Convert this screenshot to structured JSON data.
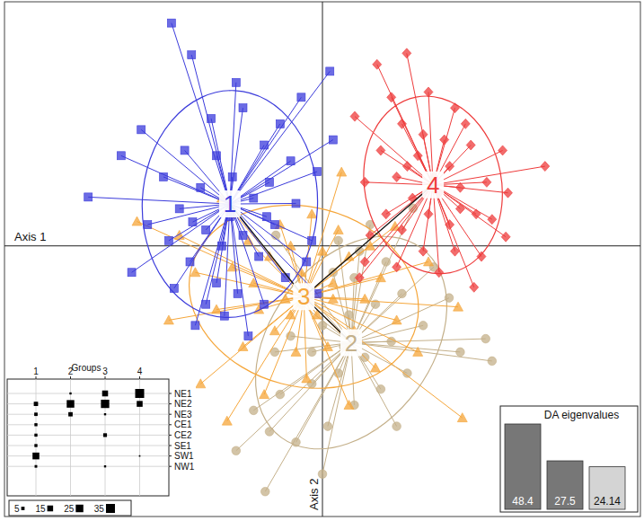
{
  "chart_data": {
    "type": "scatter",
    "x_label": "Axis 1",
    "y_label": "Axis 2",
    "xlim": [
      -6,
      6
    ],
    "ylim": [
      -5.1,
      4.6
    ],
    "xticks": [
      0
    ],
    "yticks": [
      0
    ],
    "tick_labels": false,
    "grid": false,
    "series": [
      {
        "name": "1",
        "color": "#3b3bdb",
        "marker": "square",
        "x": [
          -2.85,
          -2.47,
          -1.63,
          0.14,
          -4.42,
          -3.42,
          -1.85,
          -2.1,
          -1.5,
          -0.8,
          -0.4,
          0.2,
          -0.1,
          -0.6,
          -1.1,
          -2.6,
          -3.0,
          -3.3,
          -2.9,
          -2.5,
          -2.2,
          -1.9,
          -1.5,
          -1.2,
          -0.9,
          -0.5,
          -0.2,
          -1.3,
          -1.7,
          -2.3,
          -2.7,
          -3.6,
          -2.8,
          -2.0,
          -1.6,
          -1.1,
          -0.7,
          -0.3,
          -2.4,
          -1.4,
          -2.0,
          -1.0,
          -3.8,
          -0.1,
          -2.2,
          -1.75,
          -2.45,
          -1.05
        ],
        "values": [
          4.2,
          3.6,
          3.08,
          3.29,
          0.92,
          2.19,
          -1.32,
          2.4,
          2.6,
          2.3,
          2.8,
          2.0,
          1.4,
          1.6,
          1.9,
          1.8,
          1.3,
          0.4,
          0.1,
          -0.3,
          0.3,
          0.0,
          0.2,
          -0.2,
          0.4,
          0.8,
          0.1,
          0.9,
          1.3,
          1.1,
          0.7,
          -0.5,
          -0.8,
          -0.7,
          -0.9,
          -1.1,
          -0.6,
          -0.3,
          -1.5,
          -1.7,
          1.7,
          1.2,
          1.7,
          -0.9,
          -1.1,
          0.55,
          0.45,
          0.55
        ]
      },
      {
        "name": "2",
        "color": "#c4b08a",
        "marker": "circle",
        "x": [
          3.2,
          3.08,
          1.71,
          -1.08,
          -1.63,
          -0.88,
          2.39,
          1.2,
          0.7,
          0.2,
          -0.3,
          1.5,
          1.0,
          0.5,
          0.0,
          -0.6,
          1.9,
          1.3,
          0.8,
          0.3,
          -0.2,
          -0.8,
          -1.3,
          0.6,
          0.1,
          -0.5,
          1.1,
          1.6,
          -0.9,
          -0.4,
          2.1,
          0.9,
          0.4,
          -1.0,
          0.0,
          1.4,
          0.3,
          -0.2,
          2.6,
          0.6
        ],
        "values": [
          -2.17,
          -1.75,
          0.71,
          -4.63,
          -3.86,
          0.2,
          -0.98,
          -0.3,
          -0.1,
          -0.5,
          -0.9,
          -0.9,
          -1.1,
          -1.3,
          -1.5,
          -1.7,
          -1.5,
          -1.8,
          -2.1,
          -2.4,
          -2.6,
          -2.8,
          -3.1,
          -3.0,
          -3.4,
          -3.7,
          -2.7,
          -2.4,
          -2.0,
          -1.1,
          -0.4,
          0.4,
          -1.9,
          -3.5,
          -4.3,
          -3.4,
          0.1,
          -2.0,
          -2.0,
          -0.6
        ]
      },
      {
        "name": "3",
        "color": "#f5a63a",
        "marker": "triangle",
        "x": [
          -3.5,
          2.64,
          2.56,
          1.37,
          0.36,
          -2.4,
          -2.0,
          -1.7,
          -1.3,
          -1.0,
          -0.7,
          -0.4,
          -0.1,
          0.2,
          0.5,
          0.8,
          1.1,
          1.4,
          -0.9,
          -0.5,
          0.1,
          0.6,
          -1.5,
          -2.3,
          -1.1,
          0.3,
          -0.2,
          -0.8,
          -1.9,
          -2.7,
          0.9,
          1.8,
          -0.3,
          -1.8,
          0.0,
          -0.6,
          1.0,
          -1.4,
          2.0,
          -2.9,
          0.5,
          -1.2,
          0.2,
          -0.6
        ],
        "values": [
          0.46,
          -3.24,
          -1.15,
          0.37,
          1.39,
          -0.5,
          -1.2,
          -0.4,
          -0.7,
          -0.2,
          -1.0,
          -0.5,
          -1.3,
          -0.7,
          -0.2,
          -1.0,
          -0.6,
          -1.4,
          -1.6,
          -2.0,
          -1.9,
          -1.6,
          -1.9,
          -2.6,
          -2.8,
          0.3,
          0.6,
          0.4,
          0.9,
          0.2,
          0.0,
          -2.0,
          -2.5,
          -3.3,
          -0.1,
          -1.3,
          -2.3,
          0.1,
          -0.3,
          -1.4,
          -3.0,
          -1.2,
          -1.0,
          0.0
        ]
      },
      {
        "name": "4",
        "color": "#ee3b3b",
        "marker": "diamond",
        "x": [
          4.2,
          3.46,
          2.86,
          0.61,
          1.03,
          1.59,
          3.4,
          2.0,
          2.5,
          1.5,
          1.1,
          1.4,
          1.8,
          2.3,
          2.8,
          3.1,
          2.6,
          2.1,
          1.7,
          1.2,
          0.9,
          1.5,
          2.0,
          2.4,
          2.9,
          3.0,
          2.5,
          1.9,
          1.4,
          0.8,
          2.2,
          2.7,
          1.9,
          2.4,
          1.6,
          3.5,
          0.8,
          2.2,
          1.3,
          2.6,
          0.7,
          3.2
        ],
        "values": [
          1.5,
          0.17,
          -0.78,
          2.44,
          3.42,
          3.63,
          1.8,
          2.9,
          2.6,
          2.3,
          1.8,
          1.3,
          1.7,
          2.0,
          1.9,
          1.2,
          1.1,
          1.3,
          0.9,
          0.6,
          0.2,
          0.3,
          0.6,
          0.4,
          0.6,
          -0.2,
          -0.1,
          -0.1,
          -0.4,
          -0.3,
          -0.5,
          2.3,
          2.1,
          1.5,
          1.5,
          1.0,
          1.2,
          1.0,
          2.8,
          0.7,
          -0.6,
          0.5
        ]
      }
    ],
    "mst": [
      [
        "1",
        "3"
      ],
      [
        "3",
        "4"
      ],
      [
        "3",
        "2"
      ]
    ],
    "membership": {
      "title": "Groups",
      "columns": [
        "1",
        "2",
        "3",
        "4"
      ],
      "rows": [
        "NE1",
        "NE2",
        "NE3",
        "CE1",
        "CE2",
        "SE1",
        "SW1",
        "NW1"
      ],
      "values": [
        [
          0,
          2,
          15,
          35
        ],
        [
          8,
          25,
          30,
          15
        ],
        [
          5,
          8,
          2,
          0
        ],
        [
          4,
          0,
          0,
          0
        ],
        [
          4,
          0,
          6,
          0
        ],
        [
          4,
          0,
          0,
          0
        ],
        [
          20,
          0,
          0,
          1
        ],
        [
          3,
          0,
          2,
          0
        ]
      ],
      "size_legend": [
        5,
        15,
        25,
        35
      ]
    },
    "eigenvalues": {
      "title": "DA eigenvalues",
      "values": [
        48.4,
        27.5,
        24.14
      ],
      "colors": [
        "#777777",
        "#777777",
        "#d4d4d4"
      ],
      "data_labels": true
    }
  }
}
